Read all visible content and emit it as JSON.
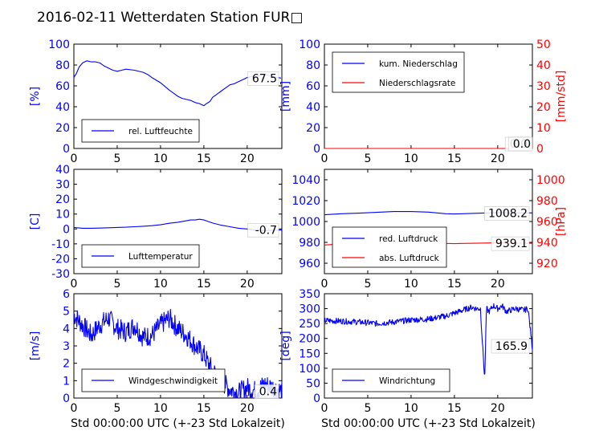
{
  "title": "2016-02-11 Wetterdaten Station FUR□",
  "colors": {
    "primary": "#0000ff",
    "secondary": "#ff0000",
    "axis": "#000000"
  },
  "chart_data": [
    {
      "type": "line",
      "ylabel": "[%]",
      "ylim": [
        0,
        100
      ],
      "yticks": [
        0,
        20,
        40,
        60,
        80,
        100
      ],
      "xlim": [
        0,
        24
      ],
      "xticks": [
        0,
        5,
        10,
        15,
        20
      ],
      "legend": {
        "position": "lower-left",
        "entries": [
          "rel. Luftfeuchte"
        ]
      },
      "annotation": "67.5",
      "series": [
        {
          "name": "rel. Luftfeuchte",
          "color": "#0000ff",
          "x": [
            0,
            0.3,
            0.6,
            1,
            1.5,
            2,
            2.5,
            3,
            3.5,
            4,
            4.5,
            5,
            5.5,
            6,
            7,
            8,
            8.5,
            9,
            10,
            11,
            11.5,
            12,
            12.5,
            13,
            13.5,
            14,
            14.5,
            15,
            15.3,
            15.7,
            16,
            16.5,
            17,
            17.5,
            18,
            18.5,
            19,
            19.5,
            20,
            20.5,
            21,
            21.5,
            22,
            22.5,
            23,
            23.5,
            23.9
          ],
          "y": [
            68,
            72,
            78,
            82,
            84,
            83,
            83,
            82,
            79,
            77,
            75,
            74,
            75,
            76,
            75,
            73,
            71,
            68,
            63,
            56,
            53,
            50,
            48,
            47,
            46,
            44,
            43,
            41,
            43,
            45,
            49,
            52,
            55,
            58,
            61,
            62,
            64,
            66,
            68,
            69,
            68,
            70,
            71,
            70,
            69,
            68,
            67.5
          ]
        }
      ]
    },
    {
      "type": "line",
      "ylabel": "[mm]",
      "ylabel2": "[mm/std]",
      "ylim": [
        0,
        100
      ],
      "yticks": [
        0,
        20,
        40,
        60,
        80,
        100
      ],
      "y2lim": [
        0,
        50
      ],
      "y2ticks": [
        0,
        10,
        20,
        30,
        40,
        50
      ],
      "xlim": [
        0,
        24
      ],
      "xticks": [
        0,
        5,
        10,
        15,
        20
      ],
      "legend": {
        "position": "upper-left",
        "entries": [
          "kum. Niederschlag",
          "Niederschlagsrate"
        ]
      },
      "annotations": [
        "0.0",
        "0.0"
      ],
      "series": [
        {
          "name": "kum. Niederschlag",
          "color": "#0000ff",
          "x": [
            0,
            24
          ],
          "y": [
            0,
            0
          ]
        },
        {
          "name": "Niederschlagsrate",
          "color": "#ff0000",
          "axis": "right",
          "x": [
            0,
            24
          ],
          "y": [
            0,
            0
          ]
        }
      ]
    },
    {
      "type": "line",
      "ylabel": "[C]",
      "ylim": [
        -30,
        40
      ],
      "yticks": [
        -30,
        -20,
        -10,
        0,
        10,
        20,
        30,
        40
      ],
      "xlim": [
        0,
        24
      ],
      "xticks": [
        0,
        5,
        10,
        15,
        20
      ],
      "legend": {
        "position": "lower-left",
        "entries": [
          "Lufttemperatur"
        ]
      },
      "annotation": "-0.7",
      "series": [
        {
          "name": "Lufttemperatur",
          "color": "#0000ff",
          "x": [
            0,
            1,
            2,
            3,
            4,
            5,
            6,
            7,
            8,
            9,
            10,
            11,
            12,
            13,
            13.5,
            14,
            14.5,
            15,
            15.5,
            16,
            17,
            18,
            19,
            20,
            21,
            22,
            23,
            24
          ],
          "y": [
            1,
            0.5,
            0.5,
            0.6,
            0.8,
            1,
            1.2,
            1.5,
            1.8,
            2.2,
            2.8,
            3.8,
            4.5,
            5.5,
            6,
            6,
            6.5,
            6,
            5,
            4,
            2.5,
            1.5,
            0.5,
            0,
            -1,
            -1.2,
            -1,
            -0.7
          ]
        }
      ]
    },
    {
      "type": "line",
      "ylabel2": "[hPa]",
      "ylim": [
        950,
        1050
      ],
      "yticks": [
        960,
        980,
        1000,
        1020,
        1040
      ],
      "y2lim": [
        910,
        1010
      ],
      "y2ticks": [
        920,
        940,
        960,
        980,
        1000
      ],
      "xlim": [
        0,
        24
      ],
      "xticks": [
        0,
        5,
        10,
        15,
        20
      ],
      "legend": {
        "position": "lower-left",
        "entries": [
          "red. Luftdruck",
          "abs. Luftdruck"
        ]
      },
      "annotations": [
        "1008.2",
        "939.1"
      ],
      "series": [
        {
          "name": "red. Luftdruck",
          "color": "#0000ff",
          "x": [
            0,
            2,
            4,
            6,
            8,
            10,
            12,
            14,
            15,
            16,
            18,
            20,
            22,
            24
          ],
          "y": [
            1006.5,
            1007.5,
            1008,
            1008.8,
            1009.5,
            1009.5,
            1009,
            1007.5,
            1007.2,
            1007.5,
            1008,
            1008.5,
            1008.3,
            1008.2
          ]
        },
        {
          "name": "abs. Luftdruck",
          "color": "#ff0000",
          "axis": "right",
          "x": [
            0,
            2,
            4,
            6,
            8,
            10,
            12,
            14,
            15,
            16,
            18,
            20,
            22,
            24
          ],
          "y": [
            937.5,
            938.5,
            939,
            939.8,
            940.5,
            940.5,
            940,
            939,
            938.8,
            939,
            939.3,
            939.5,
            939.2,
            939.1
          ]
        }
      ]
    },
    {
      "type": "line",
      "ylabel": "[m/s]",
      "xlabel": "Std 00:00:00 UTC (+-23 Std Lokalzeit)",
      "ylim": [
        0,
        6
      ],
      "yticks": [
        0,
        1,
        2,
        3,
        4,
        5,
        6
      ],
      "xlim": [
        0,
        24
      ],
      "xticks": [
        0,
        5,
        10,
        15,
        20
      ],
      "legend": {
        "position": "lower-left",
        "entries": [
          "Windgeschwindigkeit"
        ]
      },
      "annotation": "0.4",
      "series": [
        {
          "name": "Windgeschwindigkeit",
          "color": "#0000ff",
          "x": [
            0,
            1,
            2,
            3,
            4,
            5,
            6,
            7,
            8,
            9,
            10,
            11,
            12,
            13,
            14,
            15,
            15.5,
            16,
            17,
            18,
            19,
            20,
            21,
            22,
            23,
            24
          ],
          "y": [
            4.8,
            4.2,
            3.6,
            4.2,
            4.6,
            4,
            3.8,
            4.2,
            3.5,
            3.6,
            4.2,
            4.6,
            4,
            3.6,
            3,
            2.5,
            2,
            1.6,
            1,
            0.5,
            0.3,
            0.6,
            0.4,
            0.8,
            0.6,
            0.4
          ],
          "noise": 0.6
        }
      ]
    },
    {
      "type": "line",
      "ylabel": "[deg]",
      "xlabel": "Std 00:00:00 UTC (+-23 Std Lokalzeit)",
      "ylim": [
        0,
        350
      ],
      "yticks": [
        0,
        50,
        100,
        150,
        200,
        250,
        300,
        350
      ],
      "xlim": [
        0,
        24
      ],
      "xticks": [
        0,
        5,
        10,
        15,
        20
      ],
      "legend": {
        "position": "lower-left",
        "entries": [
          "Windrichtung"
        ]
      },
      "annotation": "165.9",
      "series": [
        {
          "name": "Windrichtung",
          "color": "#0000ff",
          "x": [
            0,
            2,
            4,
            6,
            8,
            10,
            12,
            14,
            15,
            16,
            17,
            17.5,
            18,
            18.5,
            18.7,
            19,
            19.5,
            20,
            20.5,
            21,
            22,
            23,
            23.5,
            24
          ],
          "y": [
            260,
            258,
            255,
            250,
            255,
            262,
            265,
            275,
            285,
            295,
            305,
            300,
            300,
            60,
            300,
            290,
            310,
            300,
            310,
            290,
            300,
            295,
            300,
            166
          ],
          "noise": 10
        }
      ]
    }
  ]
}
